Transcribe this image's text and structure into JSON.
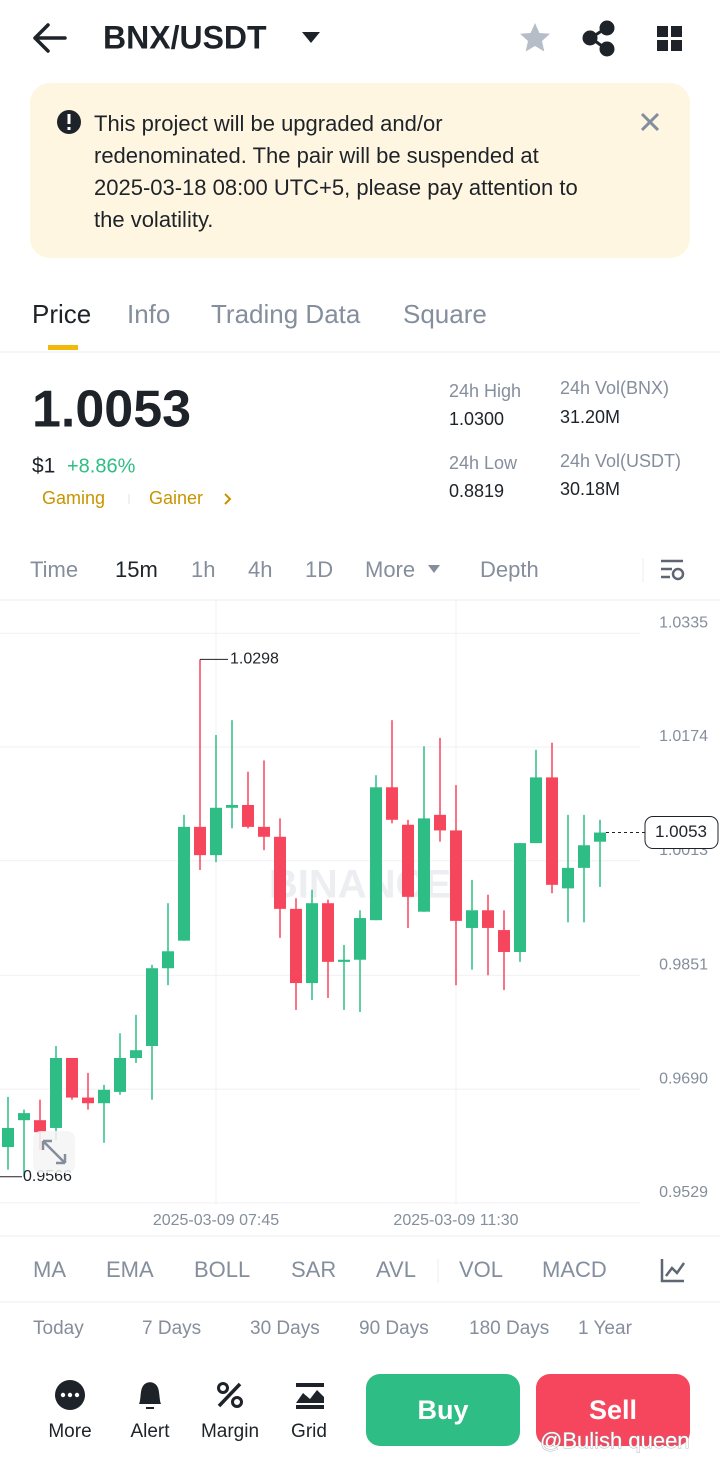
{
  "header": {
    "title": "BNX/USDT"
  },
  "notice": {
    "lines": [
      "This project will be upgraded and/or",
      "redenominated. The pair will be suspended at",
      "2025-03-18 08:00 UTC+5, please pay attention to",
      "the volatility."
    ]
  },
  "tabs": [
    "Price",
    "Info",
    "Trading Data",
    "Square"
  ],
  "price": {
    "last": "1.0053",
    "usd": "$1",
    "change": "+8.86%",
    "tags": [
      "Gaming",
      "Gainer"
    ]
  },
  "stats": [
    {
      "label": "24h High",
      "value": "1.0300"
    },
    {
      "label": "24h Vol(BNX)",
      "value": "31.20M"
    },
    {
      "label": "24h Low",
      "value": "0.8819"
    },
    {
      "label": "24h Vol(USDT)",
      "value": "30.18M"
    }
  ],
  "intervals": [
    "Time",
    "15m",
    "1h",
    "4h",
    "1D",
    "More",
    "Depth"
  ],
  "chart_data": {
    "type": "candlestick",
    "watermark": "BINANCE",
    "categories": [
      null,
      null,
      null,
      null,
      null,
      null,
      null,
      null,
      null,
      null,
      null,
      null,
      null,
      "2025-03-09 07:45",
      null,
      null,
      null,
      null,
      null,
      null,
      null,
      null,
      null,
      null,
      null,
      null,
      null,
      null,
      "2025-03-09 11:30",
      null,
      null,
      null,
      null,
      null,
      null,
      null,
      null,
      null
    ],
    "open": [
      0.9608,
      0.9646,
      0.9646,
      0.9635,
      0.9734,
      0.9678,
      0.967,
      0.9686,
      0.9734,
      0.9751,
      0.9861,
      0.99,
      1.0061,
      1.0021,
      1.0088,
      1.0092,
      1.0061,
      1.0047,
      0.9945,
      0.984,
      0.9953,
      0.987,
      0.9873,
      0.9929,
      1.0117,
      1.0064,
      0.9941,
      1.0078,
      1.0056,
      0.9918,
      0.9943,
      0.9915,
      0.9884,
      1.0038,
      1.0131,
      0.9974,
      1.0003,
      1.004
    ],
    "high": [
      0.9679,
      0.9661,
      0.9675,
      0.9751,
      0.9734,
      0.9713,
      0.9696,
      0.9769,
      0.9795,
      0.9866,
      0.9953,
      1.0078,
      1.0298,
      1.0191,
      1.0212,
      1.0139,
      1.0155,
      1.0073,
      0.996,
      0.9972,
      0.9958,
      0.9894,
      0.9943,
      1.0134,
      1.0212,
      1.0071,
      1.0175,
      1.0187,
      1.012,
      0.9986,
      0.9965,
      0.9943,
      1.0038,
      1.017,
      1.018,
      1.0078,
      1.0078,
      1.0071
    ],
    "low": [
      0.9576,
      0.9566,
      0.9604,
      0.9618,
      0.9675,
      0.9661,
      0.9614,
      0.9682,
      0.9727,
      0.9675,
      0.9837,
      0.99,
      1.0,
      1.0011,
      1.0059,
      1.0059,
      1.0028,
      0.9904,
      0.9802,
      0.9816,
      0.9819,
      0.9802,
      0.9799,
      0.9929,
      1.0066,
      0.9918,
      0.9941,
      1.004,
      0.9837,
      0.9859,
      0.9851,
      0.983,
      0.987,
      1.0038,
      0.9967,
      0.9926,
      0.9926,
      0.9976
    ],
    "close": [
      0.9635,
      0.9656,
      0.9629,
      0.9734,
      0.9678,
      0.967,
      0.9689,
      0.9734,
      0.9745,
      0.9861,
      0.9885,
      1.0061,
      1.0021,
      1.0088,
      1.0092,
      1.0061,
      1.0047,
      0.9945,
      0.984,
      0.9953,
      0.987,
      0.9873,
      0.9932,
      1.0117,
      1.0071,
      0.9962,
      1.0073,
      1.0056,
      0.9928,
      0.9943,
      0.9918,
      0.9884,
      1.0038,
      1.0131,
      0.9979,
      1.0003,
      1.0035,
      1.0053
    ],
    "up_color": "#2ebd85",
    "down_color": "#f6465d",
    "ylim": [
      0.9526,
      1.0382
    ],
    "yticks": [
      1.0335,
      1.0174,
      1.0013,
      0.9851,
      {
        "value": 0.969,
        "label": "0.9690"
      },
      0.9529
    ],
    "grid": true,
    "high_label": 1.0298,
    "low_label": 0.9566,
    "last_price": 1.0053
  },
  "indicators": [
    "MA",
    "EMA",
    "BOLL",
    "SAR",
    "AVL",
    "VOL",
    "MACD"
  ],
  "periods": [
    "Today",
    "7 Days",
    "30 Days",
    "90 Days",
    "180 Days",
    "1 Year"
  ],
  "nav": [
    "More",
    "Alert",
    "Margin",
    "Grid"
  ],
  "actions": {
    "buy": "Buy",
    "sell": "Sell"
  },
  "watermark": "@Bulish queen"
}
